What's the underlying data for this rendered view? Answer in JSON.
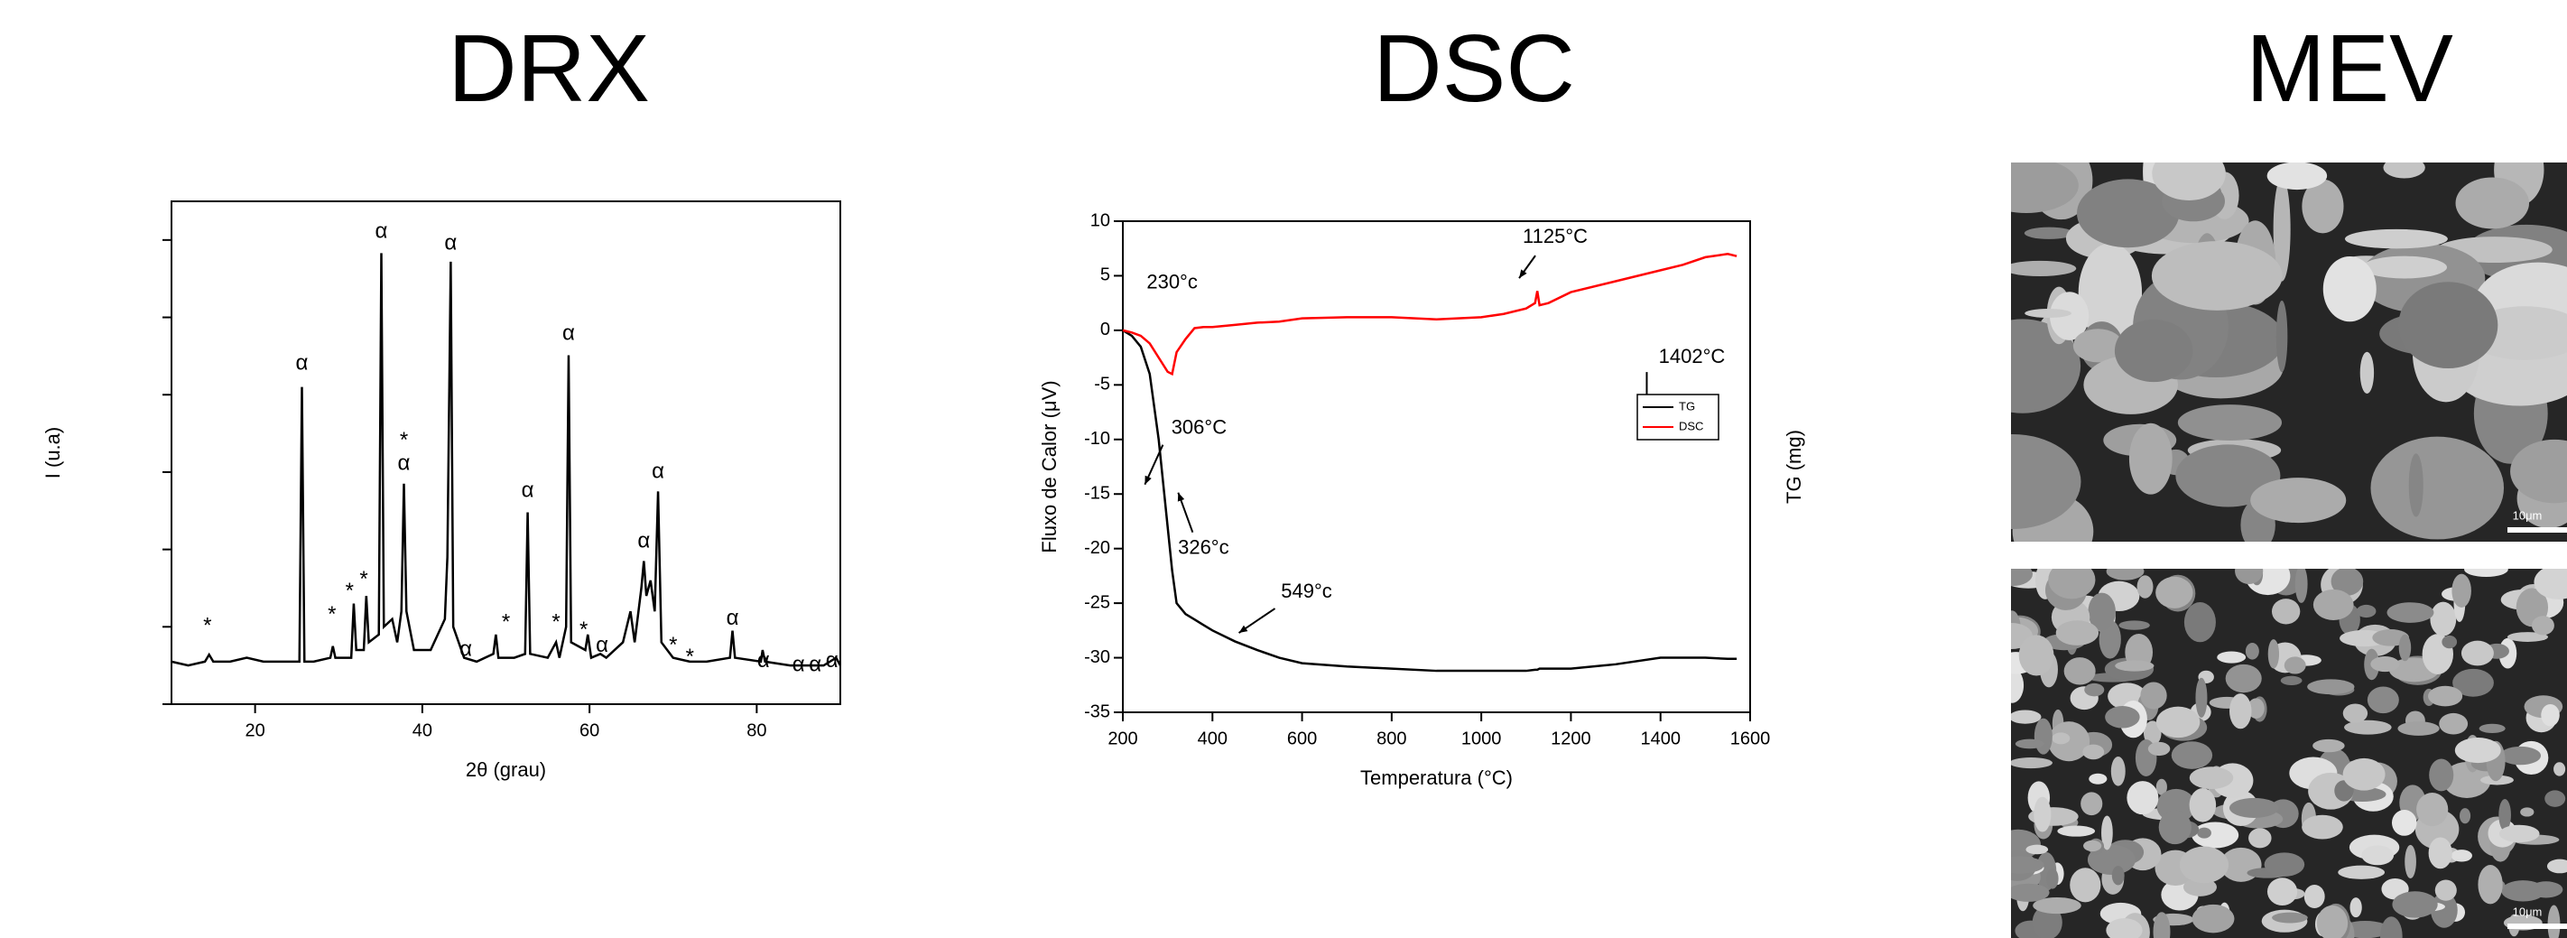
{
  "headings": [
    "DRX",
    "DSC",
    "MEV"
  ],
  "images": [
    {
      "scale_label": "10μm"
    },
    {
      "scale_label": "10μm"
    }
  ],
  "chart_data": [
    {
      "type": "line",
      "xlabel": "2θ (grau)",
      "ylabel": "I (u.a)",
      "color": "#000000",
      "xlim": [
        10,
        90
      ],
      "xticks": [
        20,
        40,
        60,
        80
      ],
      "ylim": [
        0,
        6.5
      ],
      "yticks": [
        0,
        1,
        2,
        3,
        4,
        5,
        6
      ],
      "x": [
        10,
        12,
        14,
        14.5,
        15,
        17,
        19,
        21,
        23,
        25.3,
        25.6,
        25.9,
        27,
        29,
        29.3,
        29.6,
        31.5,
        31.8,
        32.1,
        33,
        33.3,
        33.6,
        34.8,
        35.1,
        35.4,
        36.4,
        37,
        37.5,
        37.8,
        38.1,
        39,
        41,
        42.7,
        43,
        43.4,
        43.7,
        45,
        46.5,
        48.5,
        48.8,
        49.1,
        51,
        52.3,
        52.6,
        52.9,
        55,
        56,
        56.4,
        57.2,
        57.5,
        57.8,
        59.5,
        59.8,
        60.2,
        61.3,
        62,
        64,
        64.9,
        65.4,
        66.2,
        66.5,
        66.8,
        67.3,
        67.8,
        68.2,
        68.6,
        70,
        72,
        74,
        76.8,
        77.1,
        77.4,
        80.5,
        80.7,
        81,
        84,
        86,
        88,
        89.5,
        90
      ],
      "values": [
        0.55,
        0.5,
        0.55,
        0.64,
        0.55,
        0.55,
        0.6,
        0.55,
        0.55,
        0.55,
        4.1,
        0.55,
        0.55,
        0.6,
        0.75,
        0.6,
        0.6,
        1.3,
        0.7,
        0.7,
        1.4,
        0.8,
        0.9,
        5.83,
        1.0,
        1.1,
        0.8,
        1.2,
        2.85,
        1.2,
        0.7,
        0.7,
        1.1,
        1.9,
        5.72,
        1.0,
        0.6,
        0.55,
        0.65,
        0.9,
        0.6,
        0.6,
        0.65,
        2.48,
        0.65,
        0.6,
        0.8,
        0.6,
        1.0,
        4.51,
        0.8,
        0.7,
        0.9,
        0.6,
        0.65,
        0.6,
        0.8,
        1.2,
        0.8,
        1.5,
        1.85,
        1.4,
        1.6,
        1.2,
        2.75,
        0.8,
        0.6,
        0.55,
        0.55,
        0.6,
        0.95,
        0.6,
        0.55,
        0.7,
        0.55,
        0.5,
        0.5,
        0.5,
        0.6,
        0.5
      ],
      "annotations": [
        {
          "text": "*",
          "x": 14.3,
          "y": 1.0
        },
        {
          "text": "α",
          "x": 25.6,
          "y": 4.4
        },
        {
          "text": "*",
          "x": 29.2,
          "y": 1.15
        },
        {
          "text": "*",
          "x": 31.3,
          "y": 1.45
        },
        {
          "text": "*",
          "x": 33.0,
          "y": 1.6
        },
        {
          "text": "α",
          "x": 35.1,
          "y": 6.1
        },
        {
          "text": "α",
          "x": 37.8,
          "y": 3.1
        },
        {
          "text": "*",
          "x": 37.8,
          "y": 3.4
        },
        {
          "text": "α",
          "x": 43.4,
          "y": 5.95
        },
        {
          "text": "α",
          "x": 45.2,
          "y": 0.7
        },
        {
          "text": "*",
          "x": 50.0,
          "y": 1.05
        },
        {
          "text": "α",
          "x": 52.6,
          "y": 2.75
        },
        {
          "text": "*",
          "x": 56.0,
          "y": 1.05
        },
        {
          "text": "α",
          "x": 57.5,
          "y": 4.78
        },
        {
          "text": "*",
          "x": 59.3,
          "y": 0.95
        },
        {
          "text": "α",
          "x": 61.5,
          "y": 0.75
        },
        {
          "text": "α",
          "x": 66.5,
          "y": 2.1
        },
        {
          "text": "α",
          "x": 68.2,
          "y": 3.0
        },
        {
          "text": "*",
          "x": 70.0,
          "y": 0.75
        },
        {
          "text": "*",
          "x": 72.0,
          "y": 0.6
        },
        {
          "text": "α",
          "x": 77.1,
          "y": 1.1
        },
        {
          "text": "α",
          "x": 80.8,
          "y": 0.55
        },
        {
          "text": "α",
          "x": 85.0,
          "y": 0.5
        },
        {
          "text": "α",
          "x": 87.0,
          "y": 0.5
        },
        {
          "text": "α",
          "x": 89.0,
          "y": 0.55
        }
      ]
    },
    {
      "type": "line",
      "xlabel": "Temperatura (°C)",
      "ylabel": "Fluxo de Calor (μV)",
      "y2label": "TG (mg)",
      "xlim": [
        200,
        1600
      ],
      "xticks": [
        200,
        400,
        600,
        800,
        1000,
        1200,
        1400,
        1600
      ],
      "ylim": [
        -35,
        10
      ],
      "yticks": [
        -35,
        -30,
        -25,
        -20,
        -15,
        -10,
        -5,
        0,
        5,
        10
      ],
      "legend": "center right",
      "x": [
        200,
        220,
        240,
        260,
        280,
        300,
        310,
        320,
        340,
        360,
        380,
        400,
        450,
        500,
        549,
        600,
        700,
        800,
        900,
        1000,
        1050,
        1100,
        1120,
        1125,
        1130,
        1150,
        1200,
        1300,
        1400,
        1450,
        1500,
        1550,
        1570
      ],
      "series": [
        {
          "name": "TG",
          "color": "#000000",
          "values": [
            0,
            -0.5,
            -1.5,
            -4,
            -10,
            -18,
            -22,
            -25,
            -26,
            -26.5,
            -27,
            -27.5,
            -28.5,
            -29.3,
            -30,
            -30.5,
            -30.8,
            -31,
            -31.2,
            -31.2,
            -31.2,
            -31.2,
            -31.1,
            -31.1,
            -31,
            -31,
            -31,
            -30.6,
            -30,
            -30,
            -30,
            -30.1,
            -30.1
          ]
        },
        {
          "name": "DSC",
          "color": "#ff0000",
          "values": [
            0,
            -0.2,
            -0.5,
            -1.2,
            -2.5,
            -3.8,
            -4,
            -2,
            -0.8,
            0.2,
            0.3,
            0.3,
            0.5,
            0.7,
            0.8,
            1.1,
            1.2,
            1.2,
            1.0,
            1.2,
            1.5,
            2.0,
            2.5,
            3.6,
            2.3,
            2.5,
            3.5,
            4.5,
            5.5,
            6.0,
            6.7,
            7.0,
            6.8
          ]
        }
      ],
      "annotations": [
        {
          "text": "230°c",
          "x": 310,
          "y": 4.3
        },
        {
          "text": "306°C",
          "x": 370,
          "y": -9
        },
        {
          "text": "326°c",
          "x": 380,
          "y": -20
        },
        {
          "text": "549°c",
          "x": 610,
          "y": -24
        },
        {
          "text": "1125°C",
          "x": 1165,
          "y": 8.5
        },
        {
          "text": "1402°C",
          "x": 1470,
          "y": -2.5
        }
      ]
    }
  ]
}
